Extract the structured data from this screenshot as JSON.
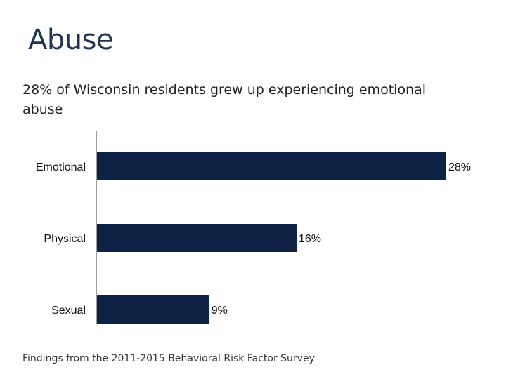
{
  "title": "Abuse",
  "subtitle": "28% of Wisconsin residents grew up experiencing emotional abuse",
  "footer": "Findings from the 2011-2015 Behavioral Risk Factor Survey",
  "colors": {
    "bar": "#0f2346",
    "axis": "#7f7f7f",
    "title": "#1f3552"
  },
  "chart_data": {
    "type": "bar",
    "orientation": "horizontal",
    "categories": [
      "Emotional",
      "Physical",
      "Sexual"
    ],
    "values": [
      28,
      16,
      9
    ],
    "value_labels": [
      "28%",
      "16%",
      "9%"
    ],
    "unit": "%",
    "xlim": [
      0,
      28
    ],
    "grid": false,
    "legend": "none"
  }
}
